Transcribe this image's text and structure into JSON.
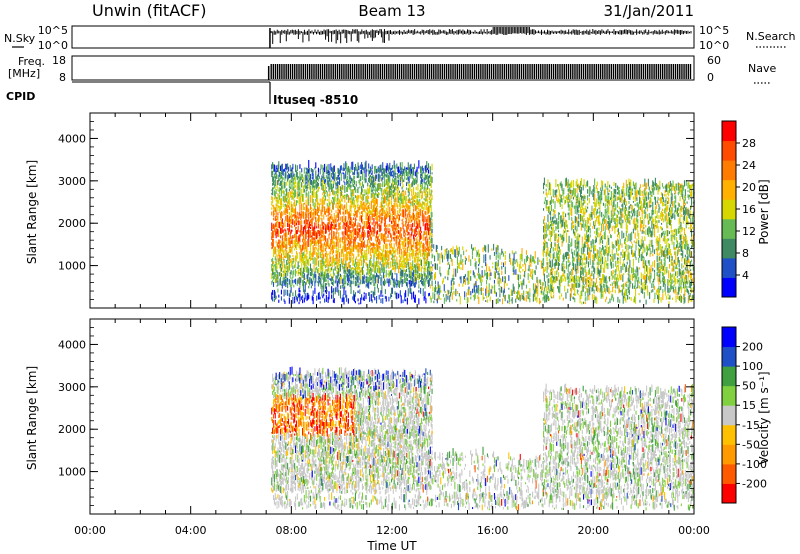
{
  "header": {
    "station": "Unwin (fitACF)",
    "beam": "Beam 13",
    "date": "31/Jan/2011"
  },
  "top_panels": {
    "nsky_label": "N.Sky",
    "nsky_ticks": [
      "10^5",
      "10^0"
    ],
    "nsearch_label": "N.Search",
    "freq_label_1": "Freq.",
    "freq_label_2": "[MHz]",
    "freq_ticks": [
      "18",
      "8"
    ],
    "nave_ticks": [
      "60",
      "0"
    ],
    "nave_label": "Nave",
    "cpid_label": "CPID",
    "cpid_value": "Ituseq -8510"
  },
  "colors": {
    "power_scale": [
      "#0000ff",
      "#2050c8",
      "#3f8a63",
      "#66bb55",
      "#d6d600",
      "#ffb000",
      "#ff7c00",
      "#ff4c00",
      "#ff0000"
    ],
    "velocity_scale": [
      "#ff0000",
      "#ff5a00",
      "#ff9a00",
      "#ffc000",
      "#c8c8c8",
      "#80d040",
      "#40a040",
      "#2050c8",
      "#0000ff"
    ]
  },
  "chart_data": [
    {
      "type": "heatmap",
      "name": "power",
      "title": "",
      "xlabel": "",
      "ylabel": "Slant Range [km]",
      "x_ticks": [
        "00:00",
        "04:00",
        "08:00",
        "12:00",
        "16:00",
        "20:00",
        "00:00"
      ],
      "y_ticks": [
        "1000",
        "2000",
        "3000",
        "4000"
      ],
      "xlim": [
        0,
        24
      ],
      "ylim": [
        0,
        4600
      ],
      "colorbar": {
        "label": "Power [dB]",
        "ticks": [
          "4",
          "8",
          "12",
          "16",
          "20",
          "24",
          "28"
        ],
        "range": [
          0,
          32
        ]
      },
      "regions": [
        {
          "x": [
            7.2,
            13.5
          ],
          "y": [
            500,
            3300
          ],
          "dominant": "orange/red"
        },
        {
          "x": [
            14.5,
            16.5
          ],
          "y": [
            600,
            1400
          ],
          "dominant": "green"
        },
        {
          "x": [
            18.0,
            24.0
          ],
          "y": [
            400,
            2900
          ],
          "dominant": "blue/green"
        }
      ]
    },
    {
      "type": "heatmap",
      "name": "velocity",
      "title": "",
      "xlabel": "Time UT",
      "ylabel": "Slant Range [km]",
      "x_ticks": [
        "00:00",
        "04:00",
        "08:00",
        "12:00",
        "16:00",
        "20:00",
        "00:00"
      ],
      "y_ticks": [
        "1000",
        "2000",
        "3000",
        "4000"
      ],
      "xlim": [
        0,
        24
      ],
      "ylim": [
        0,
        4600
      ],
      "colorbar": {
        "label": "Velocity [m s⁻¹]",
        "ticks": [
          "200",
          "100",
          "50",
          "15",
          "-15",
          "-50",
          "-100",
          "-200"
        ],
        "range": [
          -250,
          250
        ]
      },
      "regions": [
        {
          "x": [
            7.2,
            10.5
          ],
          "y": [
            1800,
            2700
          ],
          "dominant": "red/orange"
        },
        {
          "x": [
            7.2,
            16.0
          ],
          "y": [
            400,
            3300
          ],
          "dominant": "grey"
        },
        {
          "x": [
            16.0,
            24.0
          ],
          "y": [
            300,
            3000
          ],
          "dominant": "grey/green"
        }
      ]
    }
  ]
}
